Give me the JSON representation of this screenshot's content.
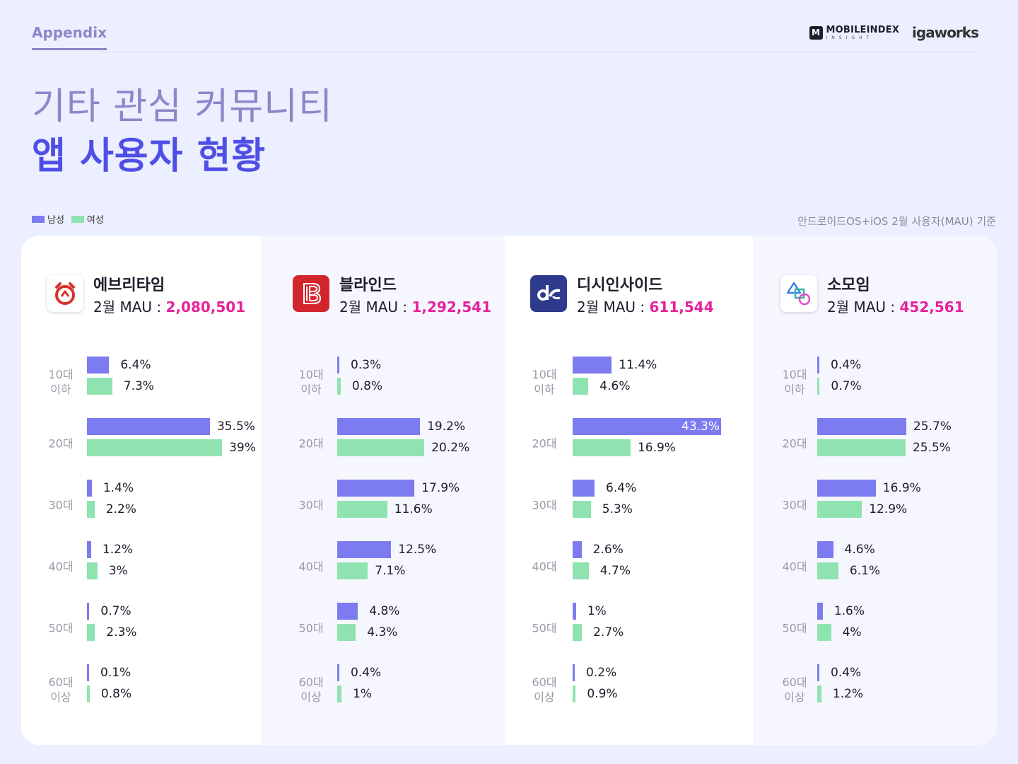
{
  "header": {
    "section": "Appendix",
    "logo_mobileindex": "MOBILEINDEX",
    "logo_mobileindex_sub": "INSIGHT",
    "logo_igaworks": "igaworks"
  },
  "title": {
    "line1": "기타 관심 커뮤니티",
    "line2": "앱 사용자 현황"
  },
  "legend": {
    "male": "남성",
    "female": "여성"
  },
  "basis_note": "안드로이드OS+iOS 2월 사용자(MAU) 기준",
  "colors": {
    "male": "#7d7bf0",
    "female": "#8fe3b0",
    "mau_value": "#e6229b",
    "title_accent": "#4f4fe6"
  },
  "chart_data": [
    {
      "type": "bar",
      "app": "에브리타임",
      "mau_label": "2월 MAU : ",
      "mau_value": "2,080,501",
      "icon": "everytime-alarm-clock-icon",
      "categories": [
        "10대\n이하",
        "20대",
        "30대",
        "40대",
        "50대",
        "60대\n이상"
      ],
      "series": [
        {
          "name": "남성",
          "values": [
            6.4,
            35.5,
            1.4,
            1.2,
            0.7,
            0.1
          ],
          "labels": [
            "6.4%",
            "35.5%",
            "1.4%",
            "1.2%",
            "0.7%",
            "0.1%"
          ]
        },
        {
          "name": "여성",
          "values": [
            7.3,
            39,
            2.2,
            3,
            2.3,
            0.8
          ],
          "labels": [
            "7.3%",
            "39%",
            "2.2%",
            "3%",
            "2.3%",
            "0.8%"
          ]
        }
      ]
    },
    {
      "type": "bar",
      "app": "블라인드",
      "mau_label": "2월 MAU : ",
      "mau_value": "1,292,541",
      "icon": "blind-b-logo-icon",
      "categories": [
        "10대\n이하",
        "20대",
        "30대",
        "40대",
        "50대",
        "60대\n이상"
      ],
      "series": [
        {
          "name": "남성",
          "values": [
            0.3,
            19.2,
            17.9,
            12.5,
            4.8,
            0.4
          ],
          "labels": [
            "0.3%",
            "19.2%",
            "17.9%",
            "12.5%",
            "4.8%",
            "0.4%"
          ]
        },
        {
          "name": "여성",
          "values": [
            0.8,
            20.2,
            11.6,
            7.1,
            4.3,
            1
          ],
          "labels": [
            "0.8%",
            "20.2%",
            "11.6%",
            "7.1%",
            "4.3%",
            "1%"
          ]
        }
      ]
    },
    {
      "type": "bar",
      "app": "디시인사이드",
      "mau_label": "2월 MAU : ",
      "mau_value": "611,544",
      "icon": "dcinside-logo-icon",
      "categories": [
        "10대\n이하",
        "20대",
        "30대",
        "40대",
        "50대",
        "60대\n이상"
      ],
      "series": [
        {
          "name": "남성",
          "values": [
            11.4,
            43.3,
            6.4,
            2.6,
            1,
            0.2
          ],
          "labels": [
            "11.4%",
            "43.3%",
            "6.4%",
            "2.6%",
            "1%",
            "0.2%"
          ]
        },
        {
          "name": "여성",
          "values": [
            4.6,
            16.9,
            5.3,
            4.7,
            2.7,
            0.9
          ],
          "labels": [
            "4.6%",
            "16.9%",
            "5.3%",
            "4.7%",
            "2.7%",
            "0.9%"
          ]
        }
      ]
    },
    {
      "type": "bar",
      "app": "소모임",
      "mau_label": "2월 MAU : ",
      "mau_value": "452,561",
      "icon": "somoim-shapes-icon",
      "categories": [
        "10대\n이하",
        "20대",
        "30대",
        "40대",
        "50대",
        "60대\n이상"
      ],
      "series": [
        {
          "name": "남성",
          "values": [
            0.4,
            25.7,
            16.9,
            4.6,
            1.6,
            0.4
          ],
          "labels": [
            "0.4%",
            "25.7%",
            "16.9%",
            "4.6%",
            "1.6%",
            "0.4%"
          ]
        },
        {
          "name": "여성",
          "values": [
            0.7,
            25.5,
            12.9,
            6.1,
            4,
            1.2
          ],
          "labels": [
            "0.7%",
            "25.5%",
            "12.9%",
            "6.1%",
            "4%",
            "1.2%"
          ]
        }
      ]
    }
  ]
}
